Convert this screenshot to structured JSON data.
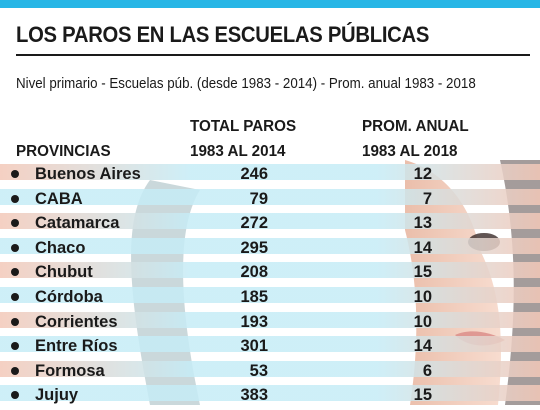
{
  "title": "LOS PAROS EN LAS ESCUELAS PÚBLICAS",
  "subtitle": "Nivel primario - Escuelas púb. (desde 1983 - 2014) - Prom. anual 1983 - 2018",
  "colors": {
    "accent_blue": "#27b6e6",
    "stripe_light_blue": "#c6ecf6",
    "stripe_warm": "#f3c8b8",
    "text": "#1a1a1a"
  },
  "headers": {
    "provincias": "PROVINCIAS",
    "total_line1": "TOTAL PAROS",
    "total_line2": "1983 AL 2014",
    "prom_line1": "PROM. ANUAL",
    "prom_line2": "1983 AL 2018"
  },
  "chart_data": {
    "type": "table",
    "columns": [
      "PROVINCIAS",
      "TOTAL PAROS 1983 AL 2014",
      "PROM. ANUAL 1983 AL 2018"
    ],
    "rows": [
      {
        "provincia": "Buenos Aires",
        "total": "246",
        "prom": "12"
      },
      {
        "provincia": "CABA",
        "total": "79",
        "prom": "7"
      },
      {
        "provincia": "Catamarca",
        "total": "272",
        "prom": "13"
      },
      {
        "provincia": "Chaco",
        "total": "295",
        "prom": "14"
      },
      {
        "provincia": "Chubut",
        "total": "208",
        "prom": "15"
      },
      {
        "provincia": "Córdoba",
        "total": "185",
        "prom": "10"
      },
      {
        "provincia": "Corrientes",
        "total": "193",
        "prom": "10"
      },
      {
        "provincia": "Entre Ríos",
        "total": "301",
        "prom": "14"
      },
      {
        "provincia": "Formosa",
        "total": "53",
        "prom": "6"
      },
      {
        "provincia": "Jujuy",
        "total": "383",
        "prom": "15"
      }
    ]
  }
}
